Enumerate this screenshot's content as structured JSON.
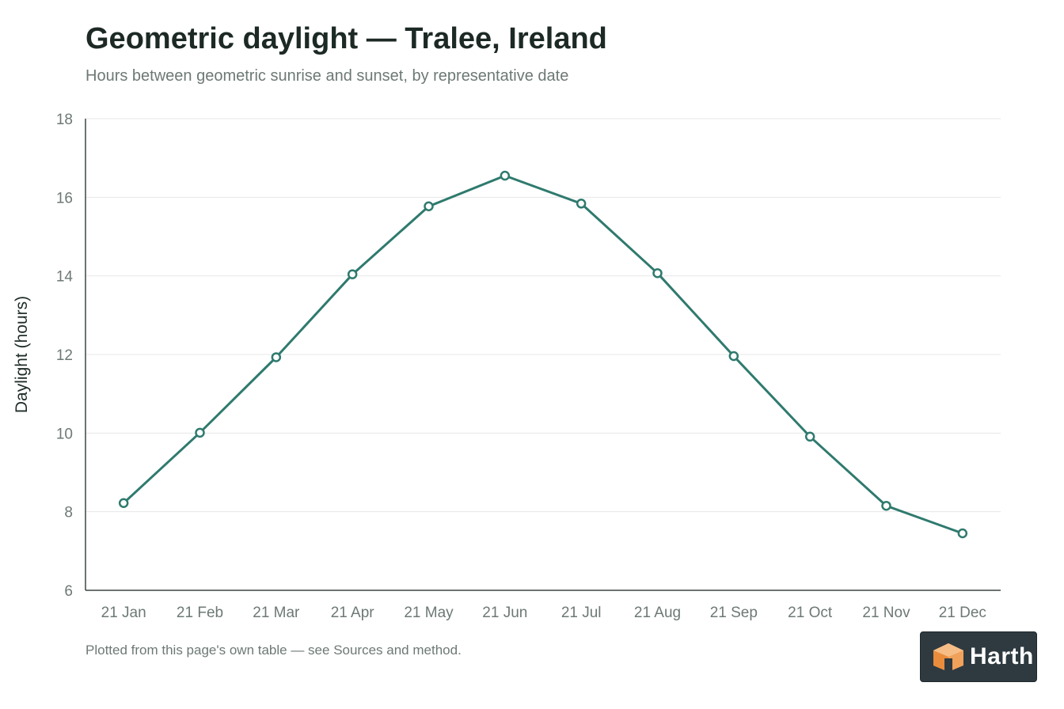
{
  "header": {
    "title": "Geometric daylight — Tralee, Ireland",
    "subtitle": "Hours between geometric sunrise and sunset, by representative date"
  },
  "footer": {
    "note": "Plotted from this page's own table — see Sources and method.",
    "logo_text": "Harth",
    "logo_icon": "harth-cube-icon"
  },
  "colors": {
    "line": "#2f7a6e",
    "marker_fill": "#ffffff",
    "axis": "#3c4643",
    "grid": "#e4e7e6",
    "tick_text": "#6d7975",
    "logo_bg": "#2e3a40",
    "logo_orange": "#f0a15a"
  },
  "chart_data": {
    "type": "line",
    "title": "Geometric daylight — Tralee, Ireland",
    "subtitle": "Hours between geometric sunrise and sunset, by representative date",
    "xlabel": "",
    "ylabel": "Daylight (hours)",
    "categories": [
      "21 Jan",
      "21 Feb",
      "21 Mar",
      "21 Apr",
      "21 May",
      "21 Jun",
      "21 Jul",
      "21 Aug",
      "21 Sep",
      "21 Oct",
      "21 Nov",
      "21 Dec"
    ],
    "series": [
      {
        "values": [
          8.22,
          10.01,
          11.93,
          14.04,
          15.77,
          16.55,
          15.84,
          14.07,
          11.96,
          9.91,
          8.15,
          7.45
        ]
      }
    ],
    "ylim": [
      6,
      18
    ],
    "yticks": [
      6,
      8,
      10,
      12,
      14,
      16,
      18
    ],
    "grid": true,
    "legend": "none"
  }
}
